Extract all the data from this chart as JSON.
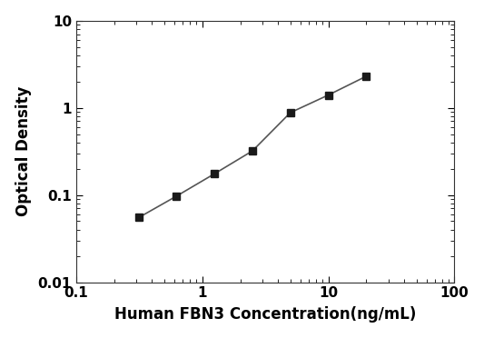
{
  "x_values": [
    0.313,
    0.625,
    1.25,
    2.5,
    5.0,
    10.0,
    20.0
  ],
  "y_values": [
    0.055,
    0.097,
    0.175,
    0.32,
    0.88,
    1.4,
    2.3
  ],
  "xlabel": "Human FBN3 Concentration(ng/mL)",
  "ylabel": "Optical Density",
  "xlim": [
    0.1,
    100
  ],
  "ylim": [
    0.01,
    10
  ],
  "line_color": "#555555",
  "marker_color": "#1a1a1a",
  "marker_style": "s",
  "marker_size": 6,
  "line_width": 1.2,
  "background_color": "#ffffff",
  "xlabel_fontsize": 12,
  "ylabel_fontsize": 12,
  "tick_fontsize": 11,
  "xtick_labels": [
    "0.1",
    "1",
    "10",
    "100"
  ],
  "xtick_values": [
    0.1,
    1,
    10,
    100
  ],
  "ytick_labels": [
    "0.01",
    "0.1",
    "1",
    "10"
  ],
  "ytick_values": [
    0.01,
    0.1,
    1,
    10
  ]
}
